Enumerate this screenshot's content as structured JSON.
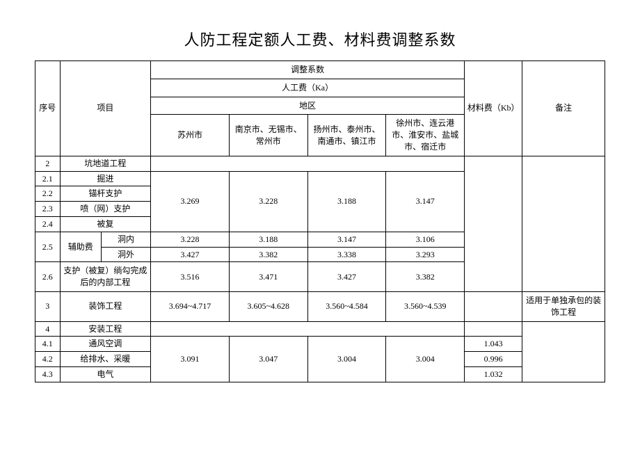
{
  "title": "人防工程定额人工费、材料费调整系数",
  "header": {
    "seq": "序号",
    "item": "项目",
    "adjust_coef": "调整系数",
    "labor_cost": "人工费（Ka）",
    "region": "地区",
    "regions": {
      "suzhou": "苏州市",
      "nanjing": "南京市、无锡市、常州市",
      "yangzhou": "扬州市、泰州市、南通市、镇江市",
      "xuzhou": "徐州市、连云港市、淮安巿、盐城巿、宿迁市"
    },
    "material_cost": "材料费（Kb）",
    "remark": "备注"
  },
  "rows": {
    "r2": {
      "seq": "2",
      "item": "坑地道工程"
    },
    "r21": {
      "seq": "2.1",
      "item": "掘进"
    },
    "r22": {
      "seq": "2.2",
      "item": "锚杆支护"
    },
    "r23": {
      "seq": "2.3",
      "item": "喷（网）支护"
    },
    "r24": {
      "seq": "2.4",
      "item": "被复"
    },
    "g21_24": {
      "c1": "3.269",
      "c2": "3.228",
      "c3": "3.188",
      "c4": "3.147"
    },
    "r25": {
      "seq": "2.5",
      "item_a": "辅助费",
      "item_b1": "洞内",
      "item_b2": "洞外",
      "inner": {
        "c1": "3.228",
        "c2": "3.188",
        "c3": "3.147",
        "c4": "3.106"
      },
      "outer": {
        "c1": "3.427",
        "c2": "3.382",
        "c3": "3.338",
        "c4": "3.293"
      }
    },
    "r26": {
      "seq": "2.6",
      "item": "支护（被复）绱勾完成 后的内部工程",
      "c1": "3.516",
      "c2": "3.471",
      "c3": "3.427",
      "c4": "3.382"
    },
    "r3": {
      "seq": "3",
      "item": "装饰工程",
      "c1": "3.694~4.717",
      "c2": "3.605~4.628",
      "c3": "3.560~4.584",
      "c4": "3.560~4.539",
      "remark": "适用于单独承包的装饰工程"
    },
    "r4": {
      "seq": "4",
      "item": "安装工程"
    },
    "r41": {
      "seq": "4.1",
      "item": "通风空调",
      "mat": "1.043"
    },
    "r42": {
      "seq": "4.2",
      "item": "给排水、采暖",
      "mat": "0.996"
    },
    "r43": {
      "seq": "4.3",
      "item": "电气",
      "mat": "1.032"
    },
    "g41_43": {
      "c1": "3.091",
      "c2": "3.047",
      "c3": "3.004",
      "c4": "3.004"
    }
  }
}
